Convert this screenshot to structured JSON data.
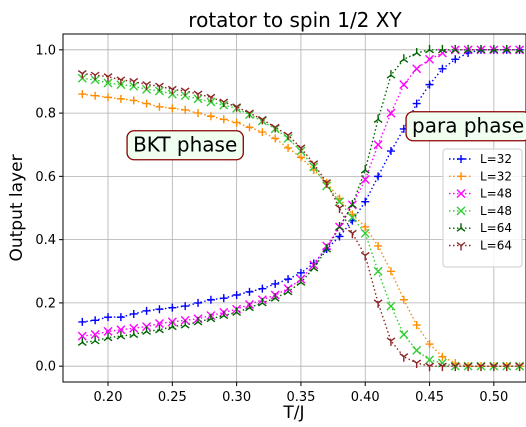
{
  "chart_data": {
    "type": "line",
    "title": "rotator to spin 1/2 XY",
    "xlabel": "T/J",
    "ylabel": "Output layer",
    "xlim": [
      0.165,
      0.525
    ],
    "ylim": [
      -0.05,
      1.05
    ],
    "grid": true,
    "legend_position": "right",
    "x_ticks": [
      "0.20",
      "0.25",
      "0.30",
      "0.35",
      "0.40",
      "0.45",
      "0.50"
    ],
    "y_ticks": [
      "0.0",
      "0.2",
      "0.4",
      "0.6",
      "0.8",
      "1.0"
    ],
    "x": [
      0.18,
      0.19,
      0.2,
      0.21,
      0.22,
      0.23,
      0.24,
      0.25,
      0.26,
      0.27,
      0.28,
      0.29,
      0.3,
      0.31,
      0.32,
      0.33,
      0.34,
      0.35,
      0.36,
      0.37,
      0.38,
      0.39,
      0.4,
      0.41,
      0.42,
      0.43,
      0.44,
      0.45,
      0.46,
      0.47,
      0.48,
      0.49,
      0.5,
      0.51,
      0.52
    ],
    "annotations": [
      {
        "text": "BKT phase",
        "x": 0.26,
        "y": 0.7
      },
      {
        "text": "para phase",
        "x": 0.48,
        "y": 0.76
      }
    ],
    "series": [
      {
        "name": "L=32",
        "color": "#0000ff",
        "marker": "plus",
        "values": [
          0.14,
          0.145,
          0.155,
          0.155,
          0.165,
          0.175,
          0.18,
          0.185,
          0.19,
          0.2,
          0.21,
          0.215,
          0.225,
          0.235,
          0.245,
          0.26,
          0.275,
          0.295,
          0.325,
          0.37,
          0.41,
          0.46,
          0.52,
          0.6,
          0.68,
          0.75,
          0.83,
          0.89,
          0.94,
          0.97,
          0.99,
          1.0,
          1.0,
          1.0,
          1.0
        ]
      },
      {
        "name": "L=32",
        "color": "#ff8c00",
        "marker": "plus",
        "values": [
          0.86,
          0.855,
          0.85,
          0.845,
          0.84,
          0.83,
          0.82,
          0.815,
          0.81,
          0.8,
          0.79,
          0.78,
          0.77,
          0.755,
          0.74,
          0.72,
          0.69,
          0.66,
          0.62,
          0.58,
          0.53,
          0.48,
          0.44,
          0.38,
          0.3,
          0.21,
          0.13,
          0.07,
          0.03,
          0.01,
          0.0,
          0.0,
          0.0,
          0.0,
          0.0
        ]
      },
      {
        "name": "L=48",
        "color": "#ff00ff",
        "marker": "x",
        "values": [
          0.095,
          0.1,
          0.11,
          0.115,
          0.12,
          0.125,
          0.135,
          0.14,
          0.145,
          0.15,
          0.16,
          0.17,
          0.18,
          0.195,
          0.21,
          0.225,
          0.245,
          0.275,
          0.32,
          0.38,
          0.44,
          0.51,
          0.59,
          0.7,
          0.8,
          0.89,
          0.94,
          0.97,
          0.99,
          1.0,
          1.0,
          1.0,
          1.0,
          1.0,
          1.0
        ]
      },
      {
        "name": "L=48",
        "color": "#32cd32",
        "marker": "x",
        "values": [
          0.91,
          0.905,
          0.895,
          0.89,
          0.885,
          0.875,
          0.87,
          0.86,
          0.855,
          0.845,
          0.835,
          0.825,
          0.815,
          0.795,
          0.775,
          0.75,
          0.72,
          0.68,
          0.63,
          0.57,
          0.52,
          0.47,
          0.42,
          0.3,
          0.19,
          0.1,
          0.05,
          0.02,
          0.01,
          0.0,
          0.0,
          0.0,
          0.0,
          0.0,
          0.0
        ]
      },
      {
        "name": "L=64",
        "color": "#006400",
        "marker": "tri_up",
        "values": [
          0.075,
          0.08,
          0.09,
          0.095,
          0.1,
          0.11,
          0.115,
          0.125,
          0.13,
          0.14,
          0.15,
          0.16,
          0.17,
          0.185,
          0.2,
          0.215,
          0.235,
          0.265,
          0.31,
          0.37,
          0.44,
          0.51,
          0.62,
          0.78,
          0.92,
          0.97,
          0.99,
          1.0,
          1.0,
          1.0,
          1.0,
          1.0,
          1.0,
          1.0,
          1.0
        ]
      },
      {
        "name": "L=64",
        "color": "#8b2323",
        "marker": "tri_down",
        "values": [
          0.925,
          0.92,
          0.915,
          0.905,
          0.9,
          0.89,
          0.885,
          0.875,
          0.87,
          0.86,
          0.85,
          0.835,
          0.82,
          0.8,
          0.78,
          0.755,
          0.73,
          0.69,
          0.64,
          0.58,
          0.5,
          0.42,
          0.35,
          0.2,
          0.08,
          0.03,
          0.01,
          0.0,
          0.0,
          0.0,
          0.0,
          0.0,
          0.0,
          0.0,
          0.0
        ]
      }
    ]
  }
}
